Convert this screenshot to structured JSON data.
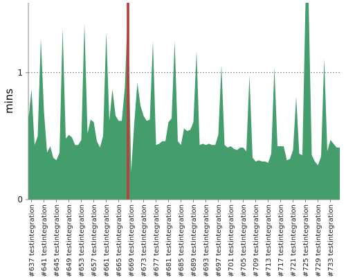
{
  "chart_data": {
    "type": "area",
    "title": "",
    "xlabel": "",
    "ylabel": "mins",
    "ylim": [
      0,
      1.55
    ],
    "yticks": [
      0,
      1
    ],
    "y_reference_line": 1,
    "grid": false,
    "legend": "none",
    "colors": {
      "fill": "#449e6c",
      "highlight": "#c23b3b",
      "reference_line": "#808080",
      "axis": "#888888",
      "text": "#222222"
    },
    "highlight_build": 668,
    "x_start": 636,
    "x_end": 736,
    "x": [
      636,
      637,
      638,
      639,
      640,
      641,
      642,
      643,
      644,
      645,
      646,
      647,
      648,
      649,
      650,
      651,
      652,
      653,
      654,
      655,
      656,
      657,
      658,
      659,
      660,
      661,
      662,
      663,
      664,
      665,
      666,
      667,
      668,
      669,
      670,
      671,
      672,
      673,
      674,
      675,
      676,
      677,
      678,
      679,
      680,
      681,
      682,
      683,
      684,
      685,
      686,
      687,
      688,
      689,
      690,
      691,
      692,
      693,
      694,
      695,
      696,
      697,
      698,
      699,
      700,
      701,
      702,
      703,
      704,
      705,
      706,
      707,
      708,
      709,
      710,
      711,
      712,
      713,
      714,
      715,
      716,
      717,
      718,
      719,
      720,
      721,
      722,
      723,
      724,
      725,
      726,
      727,
      728,
      729,
      730,
      731,
      732,
      733,
      734,
      735,
      736
    ],
    "values": [
      0.62,
      0.87,
      0.43,
      0.5,
      1.27,
      0.7,
      0.37,
      0.42,
      0.33,
      0.31,
      0.37,
      1.35,
      0.48,
      0.51,
      0.49,
      0.43,
      0.43,
      0.47,
      1.39,
      0.52,
      0.63,
      0.61,
      0.46,
      0.41,
      0.5,
      1.32,
      0.62,
      0.87,
      0.66,
      0.62,
      0.62,
      0.89,
      1.55,
      0.22,
      0.6,
      0.92,
      0.74,
      0.66,
      0.62,
      0.63,
      1.25,
      0.43,
      0.44,
      0.46,
      0.46,
      0.61,
      0.64,
      1.25,
      0.46,
      0.43,
      0.56,
      0.54,
      0.55,
      0.61,
      1.17,
      0.43,
      0.44,
      0.43,
      0.44,
      0.43,
      0.43,
      0.51,
      1.06,
      0.43,
      0.41,
      0.42,
      0.4,
      0.39,
      0.41,
      0.41,
      0.38,
      0.98,
      0.33,
      0.3,
      0.31,
      0.3,
      0.3,
      0.29,
      0.36,
      1.04,
      0.42,
      0.42,
      0.42,
      0.31,
      0.32,
      0.39,
      0.81,
      0.36,
      0.35,
      1.55,
      1.55,
      0.35,
      0.3,
      0.27,
      0.34,
      1.11,
      0.38,
      0.47,
      0.44,
      0.41,
      0.41
    ],
    "tick_labels": [
      "#637 testintegration",
      "#641 testintegration",
      "#645 testintegration",
      "#649 testintegration",
      "#653 testintegration",
      "#657 testintegration",
      "#661 testintegration",
      "#665 testintegration",
      "#669 testintegration",
      "#673 testintegration",
      "#677 testintegration",
      "#681 testintegration",
      "#685 testintegration",
      "#689 testintegration",
      "#693 testintegration",
      "#697 testintegration",
      "#701 testintegration",
      "#705 testintegration",
      "#709 testintegration",
      "#713 testintegration",
      "#717 testintegration",
      "#721 testintegration",
      "#725 testintegration",
      "#729 testintegration",
      "#733 testintegration"
    ],
    "tick_builds": [
      637,
      641,
      645,
      649,
      653,
      657,
      661,
      665,
      669,
      673,
      677,
      681,
      685,
      689,
      693,
      697,
      701,
      705,
      709,
      713,
      717,
      721,
      725,
      729,
      733
    ]
  }
}
